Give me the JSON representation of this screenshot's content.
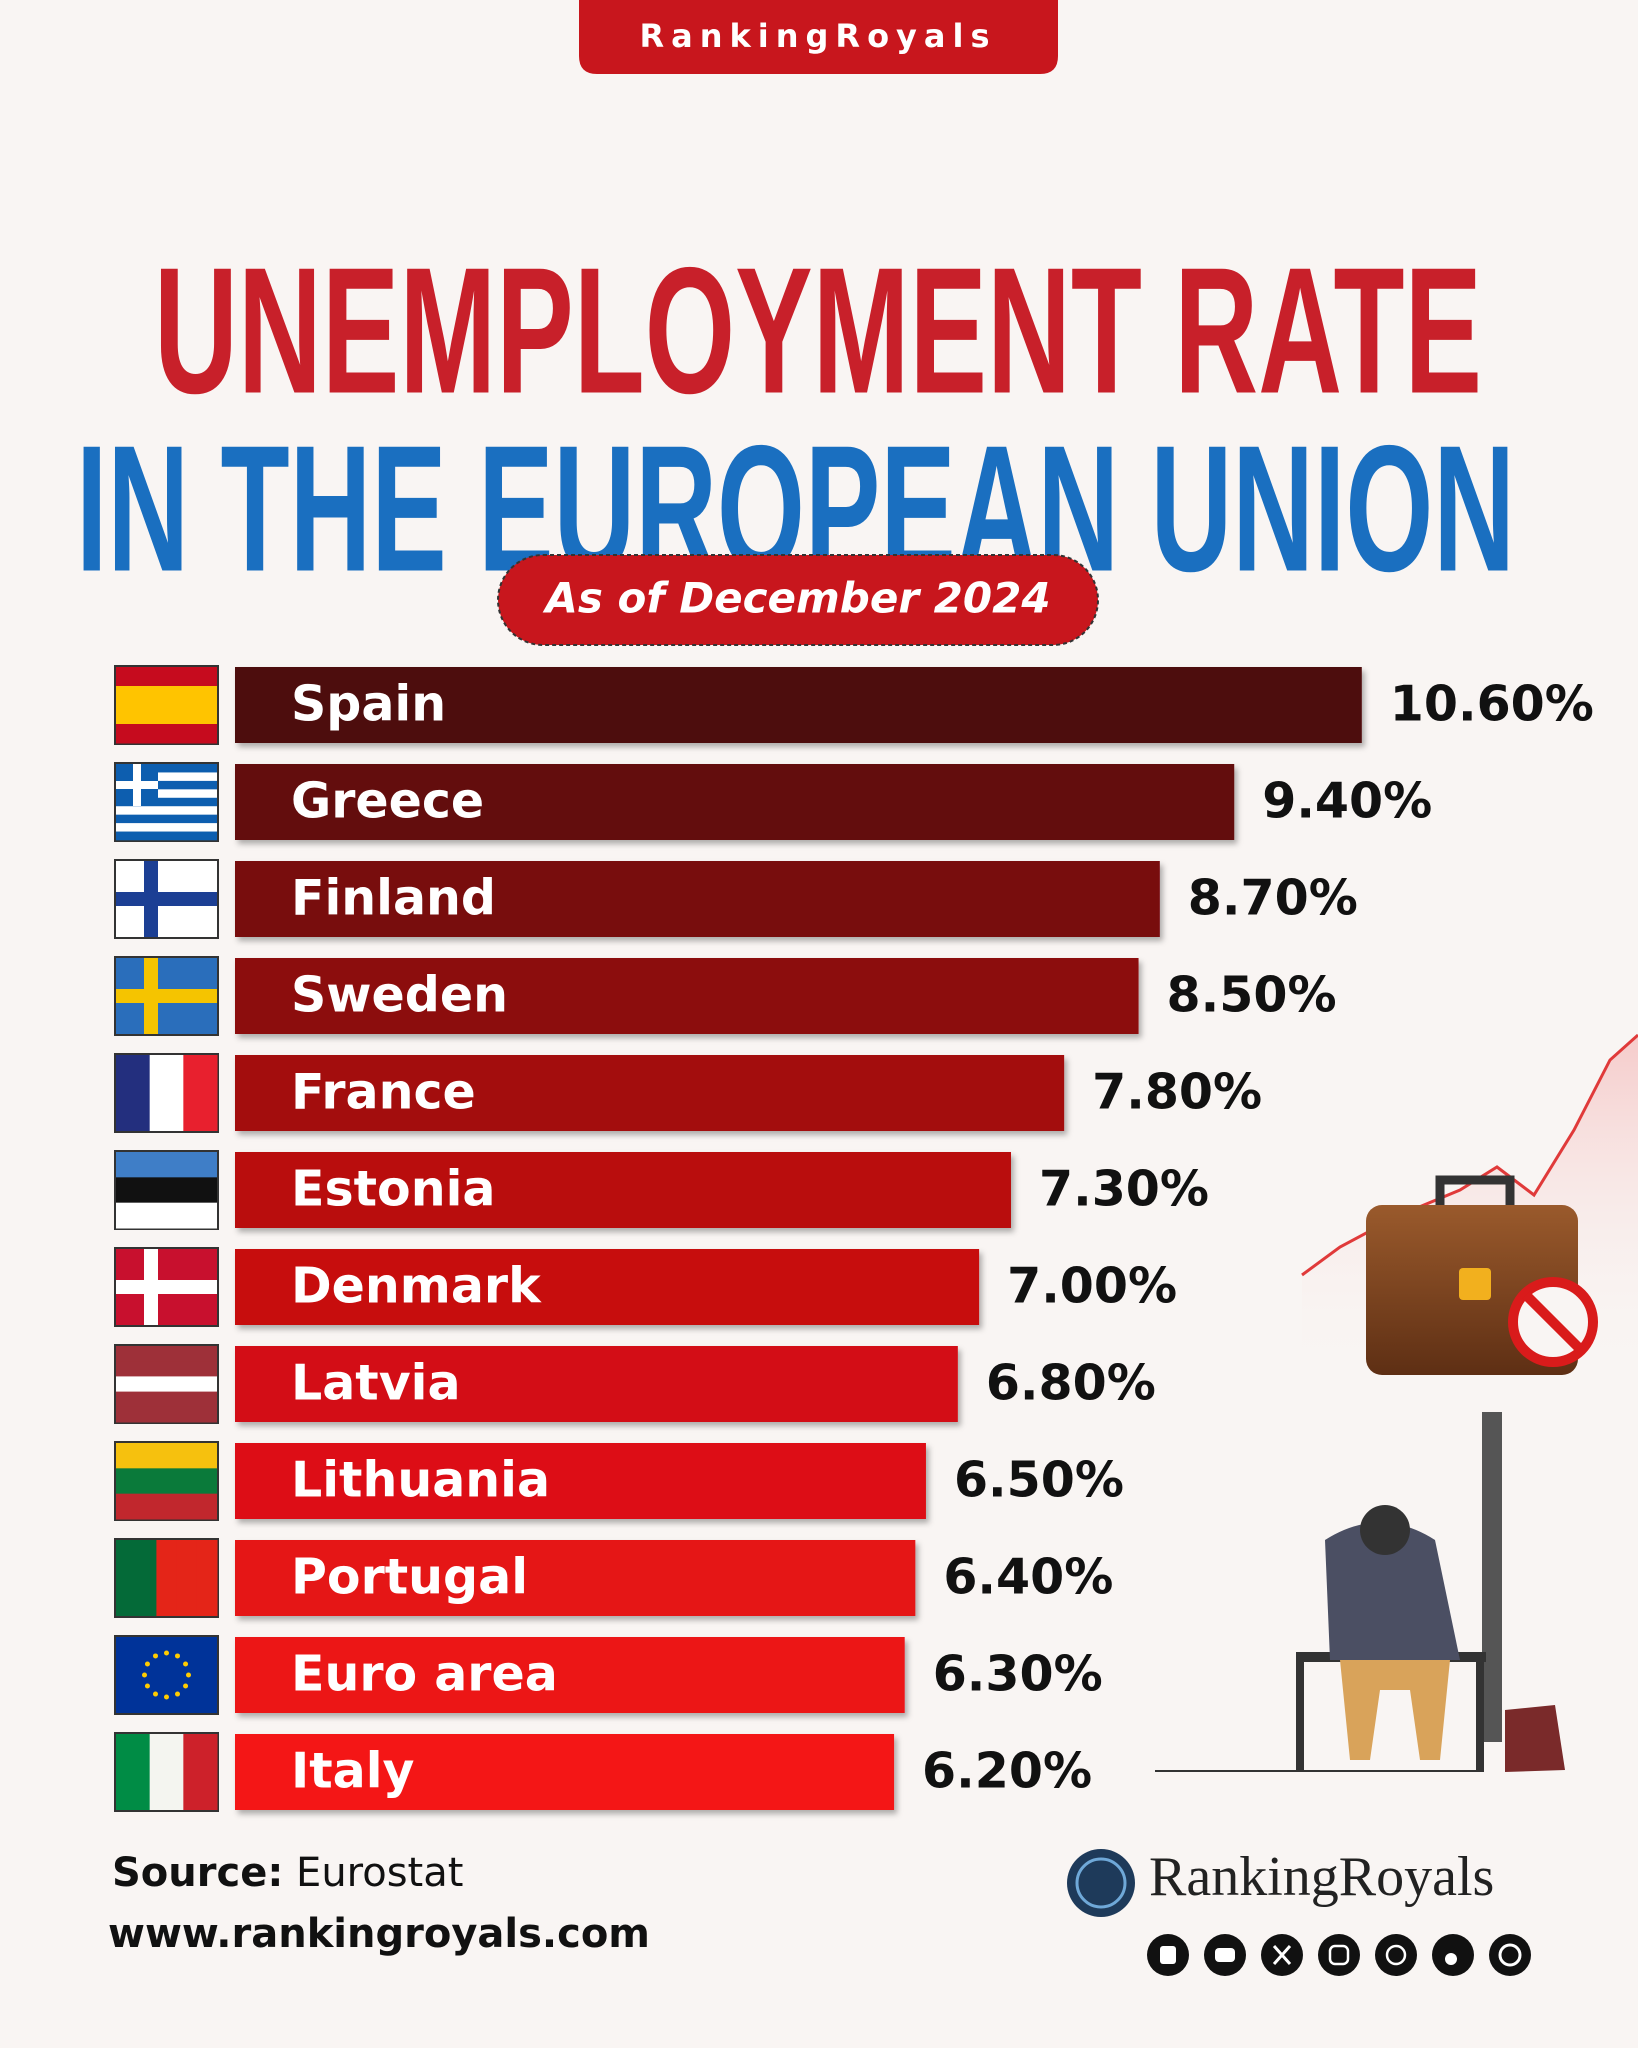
{
  "chart_data": {
    "type": "bar",
    "orientation": "horizontal",
    "badge": "RankingRoyals",
    "title": [
      "UNEMPLOYMENT RATE",
      "IN THE EUROPEAN UNION"
    ],
    "subtitle": "As of December 2024",
    "categories": [
      "Spain",
      "Greece",
      "Finland",
      "Sweden",
      "France",
      "Estonia",
      "Denmark",
      "Latvia",
      "Lithuania",
      "Portugal",
      "Euro area",
      "Italy"
    ],
    "values": [
      10.6,
      9.4,
      8.7,
      8.5,
      7.8,
      7.3,
      7.0,
      6.8,
      6.5,
      6.4,
      6.3,
      6.2
    ],
    "value_labels": [
      "10.60%",
      "9.40%",
      "8.70%",
      "8.50%",
      "7.80%",
      "7.30%",
      "7.00%",
      "6.80%",
      "6.50%",
      "6.40%",
      "6.30%",
      "6.20%"
    ],
    "colors": [
      "#4e0a0c",
      "#640b0d",
      "#780b0d",
      "#8c0c0e",
      "#a30d0f",
      "#b90e10",
      "#c70f11",
      "#d31012",
      "#dd1113",
      "#e51214",
      "#ec1214",
      "#f41213"
    ],
    "source_label": "Source:",
    "source": "Eurostat",
    "website": "www.rankingroyals.com",
    "logo_text": "RankingRoyals"
  }
}
